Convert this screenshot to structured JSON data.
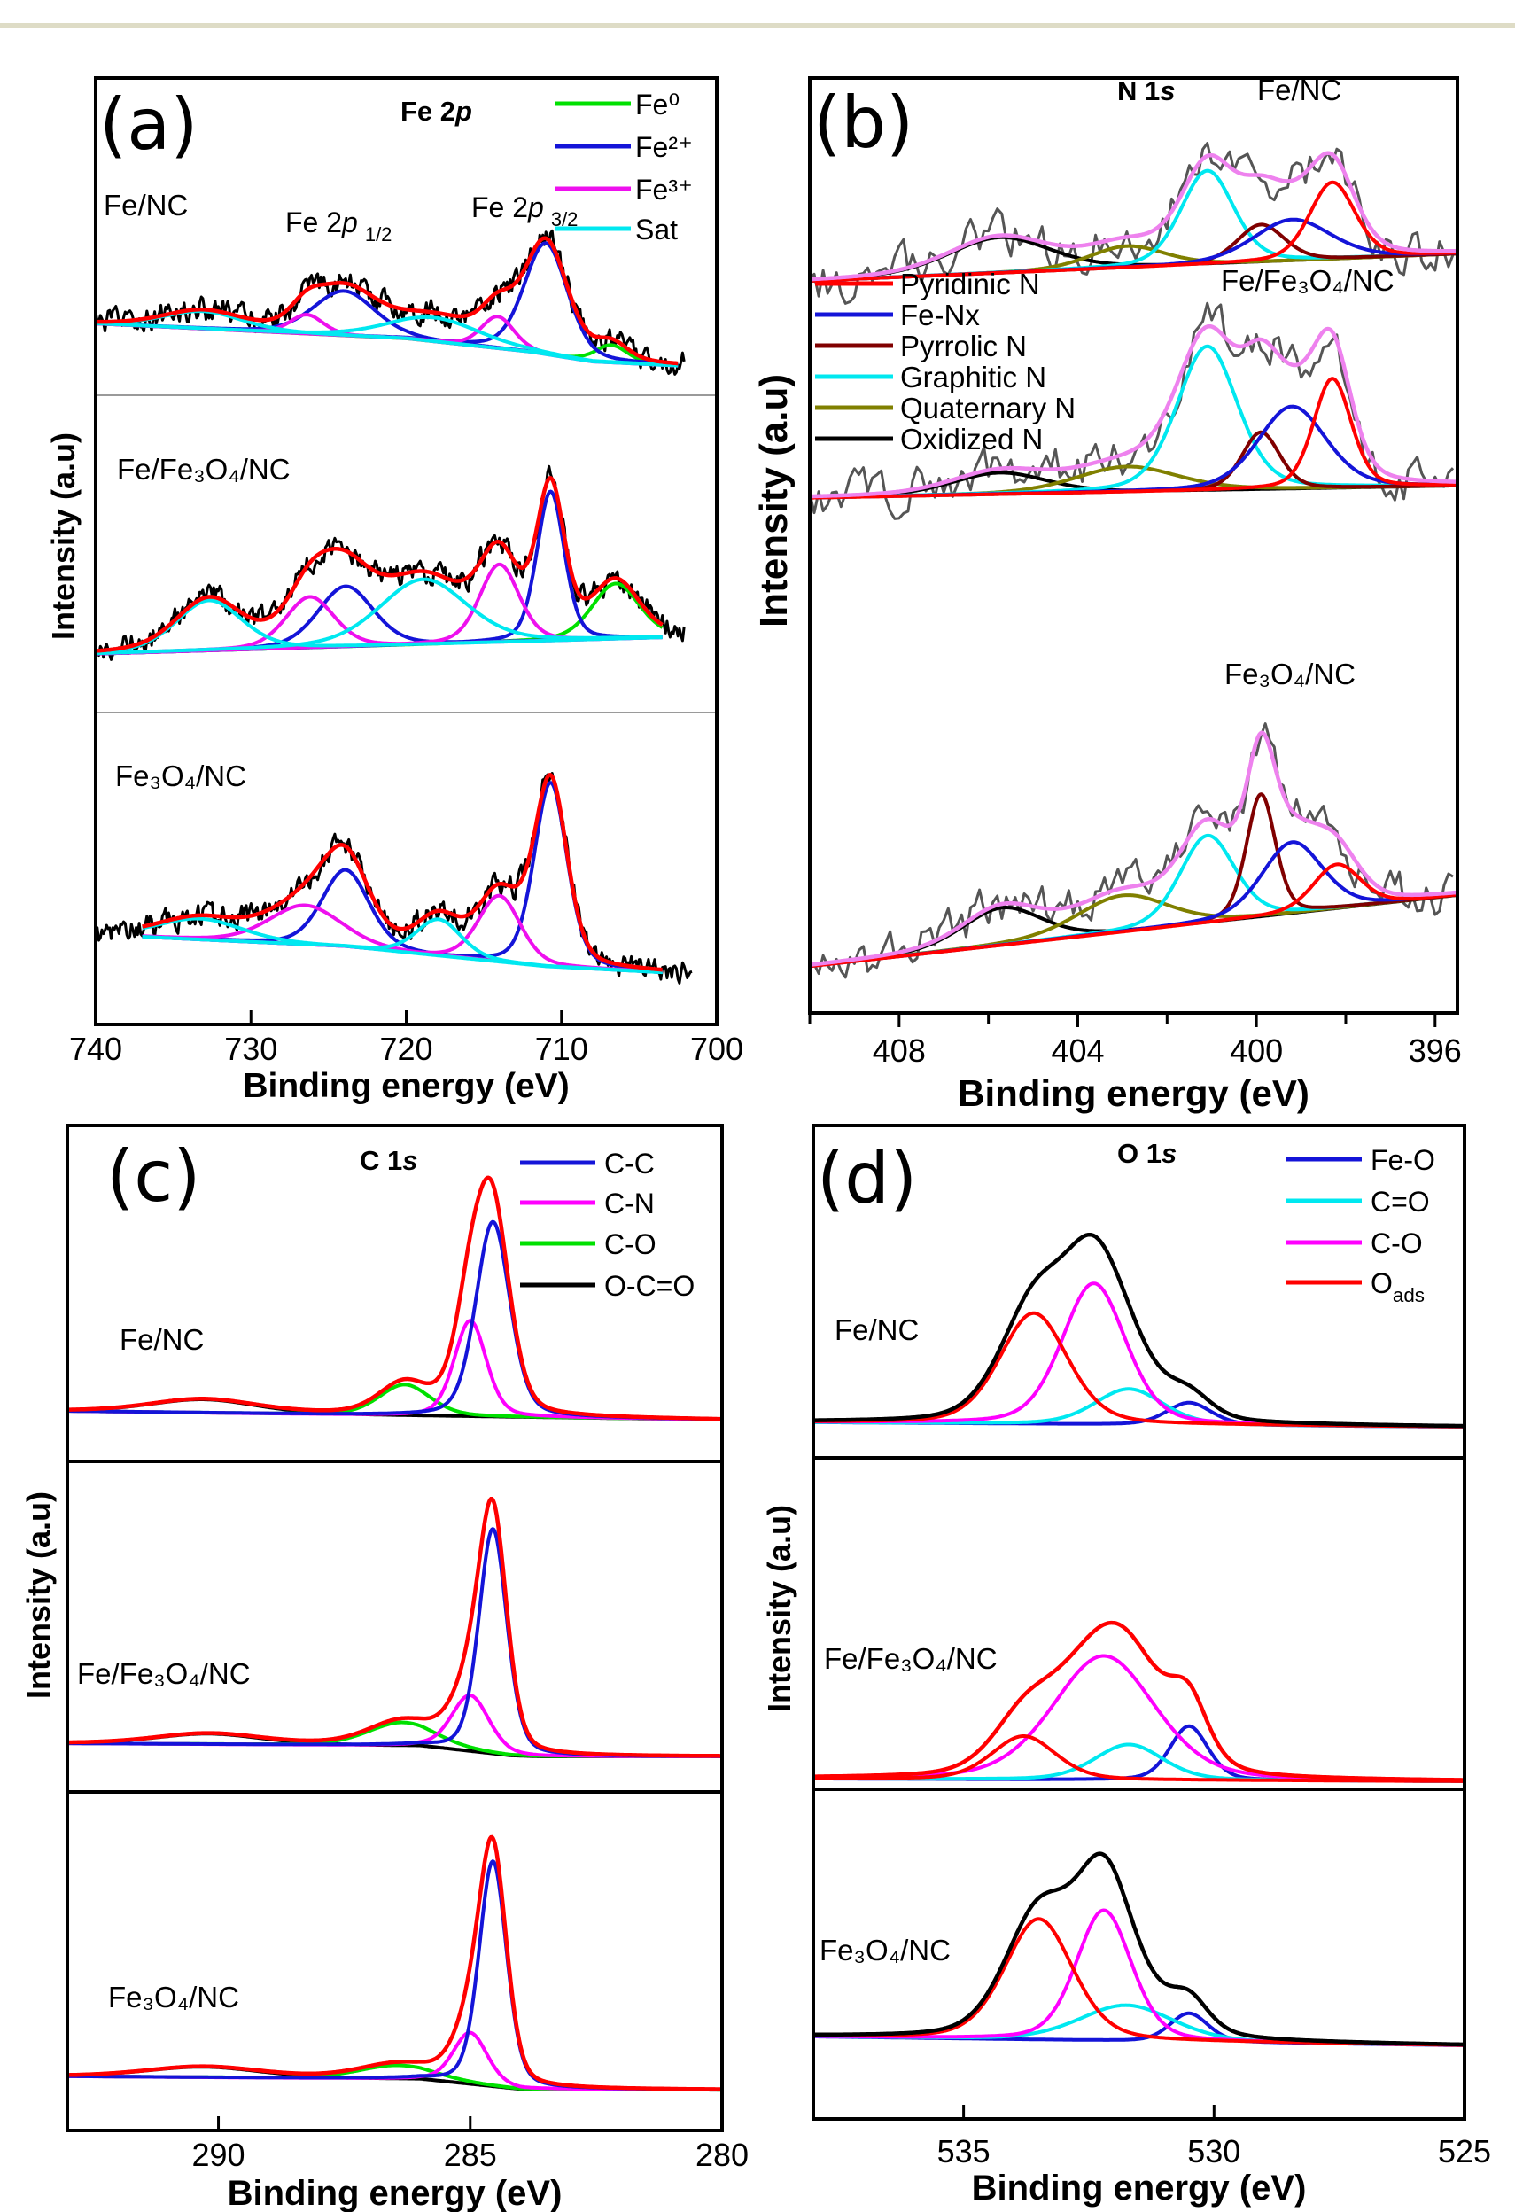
{
  "chart_data": [
    {
      "type": "line",
      "panel_label": "(a)",
      "title": {
        "main": "Fe 2",
        "italic": "p"
      },
      "xlabel": "Binding energy (eV)",
      "ylabel": "Intensity (a.u)",
      "xlim": [
        740,
        700
      ],
      "ylim": [
        0,
        100
      ],
      "xticks": [
        740,
        730,
        720,
        710,
        700
      ],
      "grid": false,
      "legend_position": "top-right",
      "legend": [
        {
          "name": "Fe⁰",
          "color": "#00e000"
        },
        {
          "name": "Fe²⁺",
          "color": "#1414d8"
        },
        {
          "name": "Fe³⁺",
          "color": "#ee10ee"
        },
        {
          "name": "Sat",
          "color": "#00e8f0"
        }
      ],
      "annotations": [
        {
          "main": "Fe 2",
          "italic": "p",
          "sub": "1/2"
        },
        {
          "main": "Fe 2",
          "italic": "p",
          "sub": "3/2"
        }
      ],
      "envelope_color": "#ff0000",
      "raw_color": "#000000",
      "spectra": [
        {
          "sample": "Fe/NC",
          "raw_range": [
            740,
            702
          ],
          "fit_range": [
            740,
            702.5
          ],
          "baseline": [
            [
              740,
              22.6
            ],
            [
              720,
              17.9
            ],
            [
              712,
              13.7
            ],
            [
              708,
              10.6
            ],
            [
              702,
              9.2
            ]
          ],
          "components": [
            {
              "name": "Fe⁰",
              "center": 706.8,
              "height": 5.5,
              "fwhm": 2.5
            },
            {
              "name": "Fe²⁺",
              "center": 711.0,
              "height": 35,
              "fwhm": 3.3
            },
            {
              "name": "Fe²⁺",
              "center": 724.0,
              "height": 14,
              "fwhm": 4.7
            },
            {
              "name": "Fe³⁺",
              "center": 714.1,
              "height": 10,
              "fwhm": 2.5
            },
            {
              "name": "Fe³⁺",
              "center": 726.4,
              "height": 6,
              "fwhm": 2.5
            },
            {
              "name": "Sat",
              "center": 718.2,
              "height": 7.5,
              "fwhm": 7
            },
            {
              "name": "Sat",
              "center": 733.1,
              "height": 5.5,
              "fwhm": 6
            }
          ]
        },
        {
          "sample": "Fe/Fe₃O₄/NC",
          "raw_range": [
            740,
            702
          ],
          "fit_range": [
            740,
            703.5
          ],
          "baseline": [
            [
              740,
              18.5
            ],
            [
              703.3,
              23.7
            ]
          ],
          "components": [
            {
              "name": "Fe⁰",
              "center": 706.5,
              "height": 17.4,
              "fwhm": 3.6
            },
            {
              "name": "Fe²⁺",
              "center": 710.7,
              "height": 47,
              "fwhm": 2.1
            },
            {
              "name": "Fe²⁺",
              "center": 723.9,
              "height": 19,
              "fwhm": 4.2
            },
            {
              "name": "Fe³⁺",
              "center": 714.0,
              "height": 24.5,
              "fwhm": 3.0
            },
            {
              "name": "Fe³⁺",
              "center": 726.2,
              "height": 16,
              "fwhm": 3.7
            },
            {
              "name": "Sat",
              "center": 718.9,
              "height": 20.5,
              "fwhm": 6.6
            },
            {
              "name": "Sat",
              "center": 732.7,
              "height": 15.8,
              "fwhm": 5
            }
          ]
        },
        {
          "sample": "Fe₃O₄/NC",
          "raw_range": [
            740,
            701.5
          ],
          "fit_range": [
            737,
            703.5
          ],
          "baseline": [
            [
              737,
              28.1
            ],
            [
              724,
              25
            ],
            [
              711,
              18.6
            ],
            [
              703.5,
              16.7
            ]
          ],
          "components": [
            {
              "name": "Fe²⁺",
              "center": 710.7,
              "height": 59,
              "fwhm": 2.5
            },
            {
              "name": "Fe²⁺",
              "center": 723.9,
              "height": 24.6,
              "fwhm": 3.6
            },
            {
              "name": "Fe³⁺",
              "center": 714.0,
              "height": 21.2,
              "fwhm": 3.2
            },
            {
              "name": "Fe³⁺",
              "center": 726.5,
              "height": 12.6,
              "fwhm": 5.5
            },
            {
              "name": "Sat",
              "center": 717.9,
              "height": 11.7,
              "fwhm": 3.4
            },
            {
              "name": "Sat",
              "center": 733.3,
              "height": 6.7,
              "fwhm": 6.5
            }
          ]
        }
      ]
    },
    {
      "type": "line",
      "panel_label": "(b)",
      "title": {
        "main": "N 1",
        "italic": "s"
      },
      "xlabel": "Binding energy (eV)",
      "ylabel": "Intensity (a.u)",
      "xlim": [
        410,
        395.5
      ],
      "ylim": [
        0,
        100
      ],
      "xticks": [
        408,
        404,
        400,
        396
      ],
      "xticks_minor": [
        410,
        406,
        402,
        398
      ],
      "grid": false,
      "legend_position": "left",
      "legend": [
        {
          "name": "Pyridinic N",
          "color": "#ff0000"
        },
        {
          "name": "Fe-Nx",
          "color": "#1414d8"
        },
        {
          "name": "Pyrrolic N",
          "color": "#800000"
        },
        {
          "name": "Graphitic N",
          "color": "#00e8f0"
        },
        {
          "name": "Quaternary N",
          "color": "#808000"
        },
        {
          "name": "Oxidized N",
          "color": "#000000"
        }
      ],
      "envelope_color": "#ee82ee",
      "raw_color": "#555555",
      "spectra": [
        {
          "sample": "Fe/NC",
          "raw_range": [
            410,
            395.5
          ],
          "fit_range": [
            410,
            395.5
          ],
          "baseline": [
            [
              410,
              78.3
            ],
            [
              395.5,
              81.2
            ]
          ],
          "components": [
            {
              "name": "Oxidized N",
              "center": 405.75,
              "height": 3.8,
              "fwhm": 2.7
            },
            {
              "name": "Quaternary N",
              "center": 402.9,
              "height": 2.3,
              "fwhm": 2.0
            },
            {
              "name": "Graphitic N",
              "center": 401.1,
              "height": 10.0,
              "fwhm": 1.4
            },
            {
              "name": "Pyrrolic N",
              "center": 399.9,
              "height": 4.0,
              "fwhm": 1.25
            },
            {
              "name": "Fe-Nx",
              "center": 399.2,
              "height": 4.4,
              "fwhm": 2.05
            },
            {
              "name": "Pyridinic N",
              "center": 398.3,
              "height": 8.2,
              "fwhm": 1.2
            }
          ]
        },
        {
          "sample": "Fe/Fe₃O₄/NC",
          "raw_range": [
            410,
            395.5
          ],
          "fit_range": [
            410,
            395.5
          ],
          "baseline": [
            [
              410,
              55.1
            ],
            [
              395.5,
              56.4
            ]
          ],
          "components": [
            {
              "name": "Oxidized N",
              "center": 405.75,
              "height": 2.3,
              "fwhm": 2.5
            },
            {
              "name": "Quaternary N",
              "center": 402.9,
              "height": 2.7,
              "fwhm": 2.7
            },
            {
              "name": "Graphitic N",
              "center": 401.1,
              "height": 15.4,
              "fwhm": 1.6
            },
            {
              "name": "Pyrrolic N",
              "center": 399.9,
              "height": 6.1,
              "fwhm": 1.0
            },
            {
              "name": "Fe-Nx",
              "center": 399.2,
              "height": 8.8,
              "fwhm": 1.8
            },
            {
              "name": "Pyridinic N",
              "center": 398.3,
              "height": 11.7,
              "fwhm": 1.0
            }
          ]
        },
        {
          "sample": "Fe₃O₄/NC",
          "raw_range": [
            410,
            395.5
          ],
          "fit_range": [
            410,
            395.5
          ],
          "baseline": [
            [
              410,
              5.0
            ],
            [
              395.5,
              12.6
            ]
          ],
          "components": [
            {
              "name": "Oxidized N",
              "center": 405.7,
              "height": 4.0,
              "fwhm": 2.1
            },
            {
              "name": "Quaternary N",
              "center": 403.0,
              "height": 3.9,
              "fwhm": 2.4
            },
            {
              "name": "Graphitic N",
              "center": 401.1,
              "height": 9.3,
              "fwhm": 1.45
            },
            {
              "name": "Pyrrolic N",
              "center": 399.9,
              "height": 13.1,
              "fwhm": 0.77
            },
            {
              "name": "Fe-Nx",
              "center": 399.2,
              "height": 7.6,
              "fwhm": 1.6
            },
            {
              "name": "Pyridinic N",
              "center": 398.2,
              "height": 4.7,
              "fwhm": 1.25
            }
          ]
        }
      ]
    },
    {
      "type": "line",
      "panel_label": "(c)",
      "title": {
        "main": "C 1",
        "italic": "s"
      },
      "xlabel": "Binding energy (eV)",
      "ylabel": "Intensity (a.u)",
      "xlim": [
        293,
        280
      ],
      "ylim": [
        0,
        100
      ],
      "xticks": [
        290,
        285,
        280
      ],
      "grid": false,
      "legend_position": "top-right",
      "legend": [
        {
          "name": "C-C",
          "color": "#1414d8"
        },
        {
          "name": "C-N",
          "color": "#ff00ff"
        },
        {
          "name": "C-O",
          "color": "#00e000"
        },
        {
          "name": "O-C=O",
          "color": "#000000"
        }
      ],
      "envelope_color": "#ff0000",
      "spectra": [
        {
          "sample": "Fe/NC",
          "baseline": [
            [
              293,
              15.0
            ],
            [
              280,
              12.4
            ]
          ],
          "components": [
            {
              "name": "O-C=O",
              "center": 290.3,
              "height": 4.0,
              "fwhm": 2.5
            },
            {
              "name": "C-O",
              "center": 286.3,
              "height": 9.2,
              "fwhm": 1.2
            },
            {
              "name": "C-N",
              "center": 285.0,
              "height": 28.5,
              "fwhm": 0.75
            },
            {
              "name": "C-C",
              "center": 284.55,
              "height": 58,
              "fwhm": 0.8
            }
          ]
        },
        {
          "sample": "Fe/Fe₃O₄/NC",
          "baseline": [
            [
              293,
              14.7
            ],
            [
              286,
              14.0
            ],
            [
              284.2,
              11.0
            ],
            [
              283.6,
              10.7
            ],
            [
              280,
              10.7
            ]
          ],
          "components": [
            {
              "name": "O-C=O",
              "center": 290.2,
              "height": 3.2,
              "fwhm": 2.5
            },
            {
              "name": "C-O",
              "center": 286.35,
              "height": 7.0,
              "fwhm": 1.6
            },
            {
              "name": "C-N",
              "center": 285.0,
              "height": 16.9,
              "fwhm": 0.88
            },
            {
              "name": "C-C",
              "center": 284.55,
              "height": 68,
              "fwhm": 0.66
            }
          ]
        },
        {
          "sample": "Fe₃O₄/NC",
          "baseline": [
            [
              293,
              16
            ],
            [
              286,
              15.2
            ],
            [
              284,
              12.2
            ],
            [
              280,
              12
            ]
          ],
          "components": [
            {
              "name": "O-C=O",
              "center": 290.3,
              "height": 3.1,
              "fwhm": 2.7
            },
            {
              "name": "C-O",
              "center": 286.45,
              "height": 4.0,
              "fwhm": 1.8
            },
            {
              "name": "C-N",
              "center": 285.0,
              "height": 15.2,
              "fwhm": 0.8
            },
            {
              "name": "C-C",
              "center": 284.55,
              "height": 66.5,
              "fwhm": 0.65
            }
          ]
        }
      ]
    },
    {
      "type": "line",
      "panel_label": "(d)",
      "title": {
        "main": "O 1",
        "italic": "s"
      },
      "xlabel": "Binding energy (eV)",
      "ylabel": "Intensity (a.u)",
      "xlim": [
        538,
        525
      ],
      "ylim": [
        0,
        100
      ],
      "xticks": [
        535,
        530,
        525
      ],
      "grid": false,
      "legend_position": "top-right",
      "legend": [
        {
          "name": "Fe-O",
          "color": "#1414d8"
        },
        {
          "name": "C=O",
          "color": "#00e8f0"
        },
        {
          "name": "C-O",
          "color": "#ff00ff"
        },
        {
          "name": "O",
          "sub": "ads",
          "color": "#ff0000"
        }
      ],
      "spectra": [
        {
          "sample": "Fe/NC",
          "envelope_color": "#000000",
          "baseline": [
            [
              538,
              10.7
            ],
            [
              525,
              9.3
            ]
          ],
          "components": [
            {
              "name": "Fe-O",
              "center": 530.5,
              "height": 6.7,
              "fwhm": 1.06
            },
            {
              "name": "C=O",
              "center": 531.7,
              "height": 10.7,
              "fwhm": 1.6
            },
            {
              "name": "C-O",
              "center": 532.4,
              "height": 42.4,
              "fwhm": 1.5
            },
            {
              "name": "Oads",
              "center": 533.6,
              "height": 33.3,
              "fwhm": 1.6
            }
          ]
        },
        {
          "sample": "Fe/Fe₃O₄/NC",
          "envelope_color": "#ff0000",
          "baseline": [
            [
              538,
              3.2
            ],
            [
              525,
              2.4
            ]
          ],
          "components": [
            {
              "name": "Fe-O",
              "center": 530.5,
              "height": 16.3,
              "fwhm": 0.9
            },
            {
              "name": "C=O",
              "center": 531.7,
              "height": 10.7,
              "fwhm": 1.6
            },
            {
              "name": "C-O",
              "center": 532.2,
              "height": 37.4,
              "fwhm": 2.4
            },
            {
              "name": "Oads",
              "center": 533.8,
              "height": 13.1,
              "fwhm": 1.5
            }
          ]
        },
        {
          "sample": "Fe₃O₄/NC",
          "envelope_color": "#000000",
          "baseline": [
            [
              538,
              25
            ],
            [
              525,
              22.3
            ]
          ],
          "components": [
            {
              "name": "Fe-O",
              "center": 530.5,
              "height": 8.6,
              "fwhm": 0.9
            },
            {
              "name": "C=O",
              "center": 531.75,
              "height": 10.8,
              "fwhm": 2.2
            },
            {
              "name": "C-O",
              "center": 532.2,
              "height": 39.5,
              "fwhm": 1.3
            },
            {
              "name": "Oads",
              "center": 533.5,
              "height": 36.6,
              "fwhm": 1.6
            }
          ]
        }
      ]
    }
  ]
}
